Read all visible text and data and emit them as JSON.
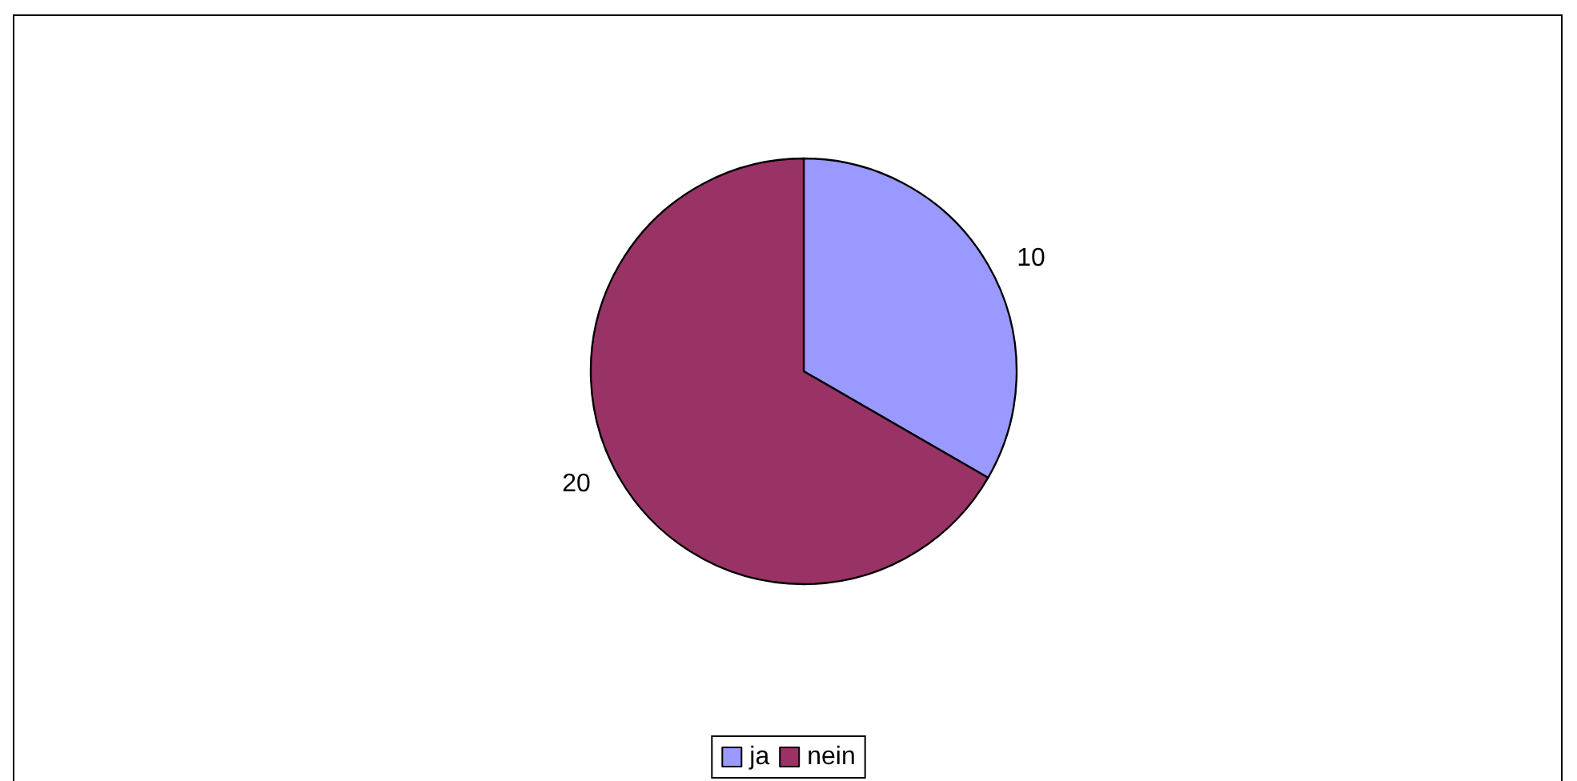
{
  "chart_data": {
    "type": "pie",
    "categories": [
      "ja",
      "nein"
    ],
    "values": [
      10,
      20
    ],
    "colors": [
      "#9999ff",
      "#993366"
    ],
    "data_labels": true,
    "legend": "bottom"
  }
}
